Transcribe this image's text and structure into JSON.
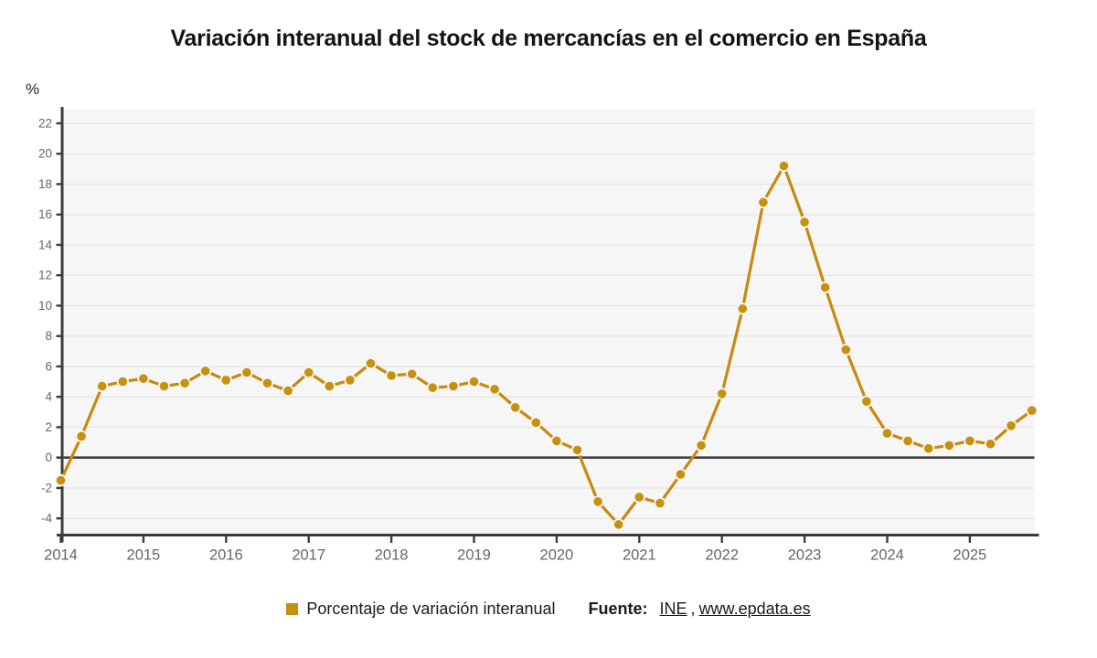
{
  "chart_data": {
    "type": "line",
    "title": "Variación interanual del stock de mercancías en el comercio en España",
    "unit_label": "%",
    "x_tick_labels": [
      "2014",
      "2015",
      "2016",
      "2017",
      "2018",
      "2019",
      "2020",
      "2021",
      "2022",
      "2023",
      "2024",
      "2025"
    ],
    "points_per_year": 4,
    "x_start_year": 2014,
    "y_ticks": [
      -4,
      -2,
      0,
      2,
      4,
      6,
      8,
      10,
      12,
      14,
      16,
      18,
      20,
      22
    ],
    "ylim": [
      -5.1,
      22.9
    ],
    "grid": true,
    "legend_position": "bottom",
    "series": [
      {
        "name": "Porcentaje de variación interanual",
        "values": [
          -1.5,
          1.4,
          4.7,
          5.0,
          5.2,
          4.7,
          4.9,
          5.7,
          5.1,
          5.6,
          4.9,
          4.4,
          5.6,
          4.7,
          5.1,
          6.2,
          5.4,
          5.5,
          4.6,
          4.7,
          5.0,
          4.5,
          3.3,
          2.3,
          1.1,
          0.5,
          -2.9,
          -4.4,
          -2.6,
          -3.0,
          -1.1,
          0.8,
          4.2,
          9.8,
          16.8,
          19.2,
          15.5,
          11.2,
          7.1,
          3.7,
          1.6,
          1.1,
          0.6,
          0.8,
          1.1,
          0.9,
          2.1,
          3.1
        ]
      }
    ],
    "colors": {
      "line": "#C8890E",
      "marker": "#C7910E",
      "plot_bg": "#f6f6f6",
      "grid": "#e4e4e4",
      "axis": "#3c3c3c",
      "zero_line": "#404040",
      "tick_label": "#666666"
    }
  },
  "legend": {
    "label": "Porcentaje de variación interanual",
    "swatch_color": "#C7910E"
  },
  "source": {
    "prefix": "Fuente:",
    "link1": "INE",
    "separator": ",",
    "link2": "www.epdata.es"
  }
}
